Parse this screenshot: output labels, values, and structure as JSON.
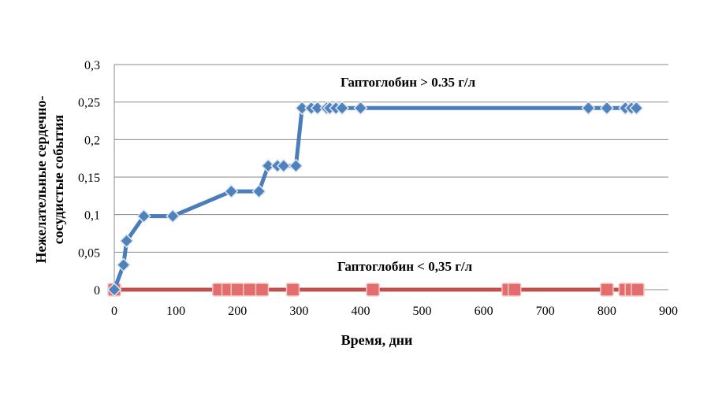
{
  "chart_data": {
    "type": "line",
    "title": "",
    "xlabel": "Время, дни",
    "ylabel": "Нежелательные сердечно-сосудистые события",
    "ylabel_lines": [
      "Нежелательные сердечно-",
      "сосудистые события"
    ],
    "xlim": [
      0,
      900
    ],
    "ylim": [
      0,
      0.3
    ],
    "x_ticks": [
      0,
      100,
      200,
      300,
      400,
      500,
      600,
      700,
      800,
      900
    ],
    "x_tick_labels": [
      "0",
      "100",
      "200",
      "300",
      "400",
      "500",
      "600",
      "700",
      "800",
      "900"
    ],
    "y_ticks": [
      0,
      0.05,
      0.1,
      0.15,
      0.2,
      0.25,
      0.3
    ],
    "y_tick_labels": [
      "0",
      "0,05",
      "0,1",
      "0,15",
      "0,2",
      "0,25",
      "0,3"
    ],
    "grid": "horizontal",
    "annotations": [
      "Гаптоглобин > 0.35 г/л",
      "Гаптоглобин < 0,35 г/л"
    ],
    "series": [
      {
        "color": "#4f81bd",
        "line_color": "#4a7ebb",
        "marker": "diamond",
        "points": [
          [
            0,
            0
          ],
          [
            15,
            0.033
          ],
          [
            20,
            0.065
          ],
          [
            48,
            0.098
          ],
          [
            95,
            0.098
          ],
          [
            190,
            0.131
          ],
          [
            235,
            0.131
          ],
          [
            250,
            0.165
          ],
          [
            265,
            0.165
          ],
          [
            275,
            0.165
          ],
          [
            295,
            0.165
          ],
          [
            305,
            0.242
          ],
          [
            320,
            0.242
          ],
          [
            330,
            0.242
          ],
          [
            345,
            0.242
          ],
          [
            350,
            0.242
          ],
          [
            360,
            0.242
          ],
          [
            370,
            0.242
          ],
          [
            400,
            0.242
          ],
          [
            770,
            0.242
          ],
          [
            800,
            0.242
          ],
          [
            830,
            0.242
          ],
          [
            840,
            0.242
          ],
          [
            848,
            0.242
          ]
        ]
      },
      {
        "color": "#e36c6c",
        "line_color": "#c0504d",
        "marker": "square",
        "points": [
          [
            0,
            0
          ],
          [
            170,
            0
          ],
          [
            185,
            0
          ],
          [
            200,
            0
          ],
          [
            220,
            0
          ],
          [
            240,
            0
          ],
          [
            290,
            0
          ],
          [
            420,
            0
          ],
          [
            640,
            0
          ],
          [
            650,
            0
          ],
          [
            800,
            0
          ],
          [
            830,
            0
          ],
          [
            840,
            0
          ],
          [
            850,
            0
          ]
        ]
      }
    ]
  }
}
